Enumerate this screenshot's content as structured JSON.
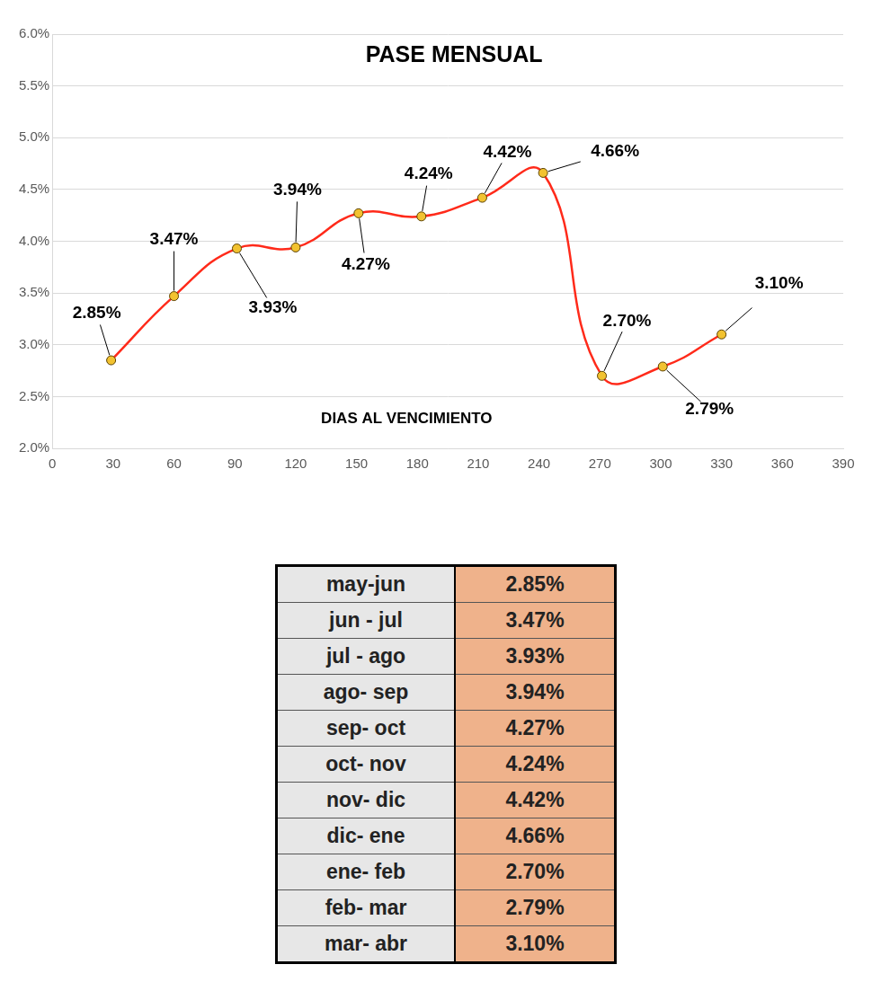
{
  "chart_data": {
    "type": "line",
    "title": "PASE MENSUAL",
    "xlabel": "DIAS AL VENCIMIENTO",
    "x": [
      29,
      60,
      91,
      120,
      151,
      182,
      212,
      242,
      271,
      301,
      330
    ],
    "values": [
      2.85,
      3.47,
      3.93,
      3.94,
      4.27,
      4.24,
      4.42,
      4.66,
      2.7,
      2.79,
      3.1
    ],
    "value_labels": [
      "2.85%",
      "3.47%",
      "3.93%",
      "3.94%",
      "4.27%",
      "4.24%",
      "4.42%",
      "4.66%",
      "2.70%",
      "2.79%",
      "3.10%"
    ],
    "color": "#ff2a1a",
    "marker": "circle",
    "line_style": "solid",
    "data_labels": true,
    "grid": true,
    "xlim": [
      0,
      390
    ],
    "xticks": [
      0,
      30,
      60,
      90,
      120,
      150,
      180,
      210,
      240,
      270,
      300,
      330,
      360,
      390
    ],
    "ylim": [
      2,
      6
    ],
    "yticks": [
      {
        "value": 2,
        "label": "2.0%"
      },
      {
        "value": 2.5,
        "label": "2.5%"
      },
      {
        "value": 3,
        "label": "3.0%"
      },
      {
        "value": 3.5,
        "label": "3.5%"
      },
      {
        "value": 4,
        "label": "4.0%"
      },
      {
        "value": 4.5,
        "label": "4.5%"
      },
      {
        "value": 5,
        "label": "5.0%"
      },
      {
        "value": 5.5,
        "label": "5.5%"
      },
      {
        "value": 6,
        "label": "6.0%"
      }
    ]
  },
  "table": {
    "rows": [
      [
        "may-jun",
        "2.85%"
      ],
      [
        "jun - jul",
        "3.47%"
      ],
      [
        "jul - ago",
        "3.93%"
      ],
      [
        "ago- sep",
        "3.94%"
      ],
      [
        "sep- oct",
        "4.27%"
      ],
      [
        "oct- nov",
        "4.24%"
      ],
      [
        "nov- dic",
        "4.42%"
      ],
      [
        "dic- ene",
        "4.66%"
      ],
      [
        "ene- feb",
        "2.70%"
      ],
      [
        "feb- mar",
        "2.79%"
      ],
      [
        "mar- abr",
        "3.10%"
      ]
    ]
  }
}
